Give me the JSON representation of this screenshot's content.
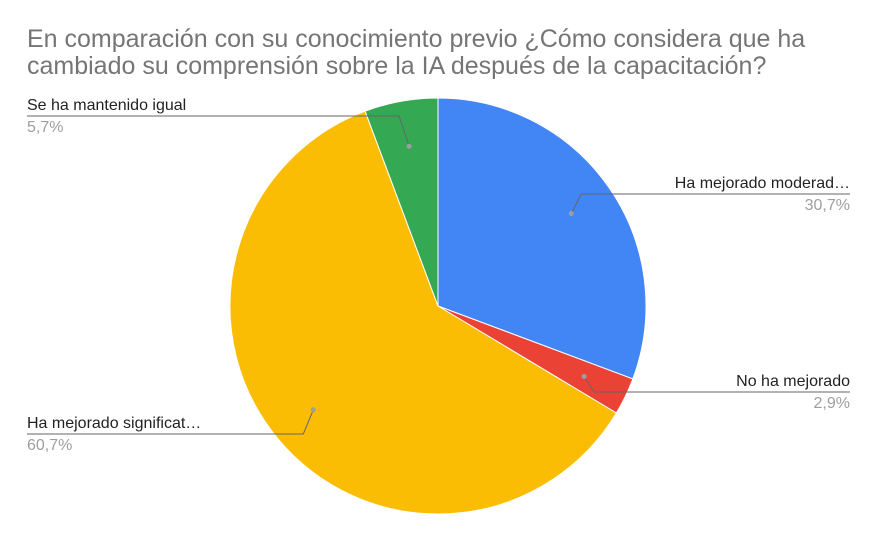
{
  "chart_data": {
    "type": "pie",
    "title": "En comparación con su conocimiento previo ¿Cómo considera que ha cambiado su comprensión sobre la IA después de la capacitación?",
    "slices": [
      {
        "label": "Ha mejorado moderad…",
        "value": 30.7,
        "value_text": "30,7%",
        "color": "#4285f4"
      },
      {
        "label": "No ha mejorado",
        "value": 2.9,
        "value_text": "2,9%",
        "color": "#ea4335"
      },
      {
        "label": "Ha mejorado significat…",
        "value": 60.7,
        "value_text": "60,7%",
        "color": "#fbbc04"
      },
      {
        "label": "Se ha mantenido igual",
        "value": 5.7,
        "value_text": "5,7%",
        "color": "#34a853"
      }
    ]
  }
}
